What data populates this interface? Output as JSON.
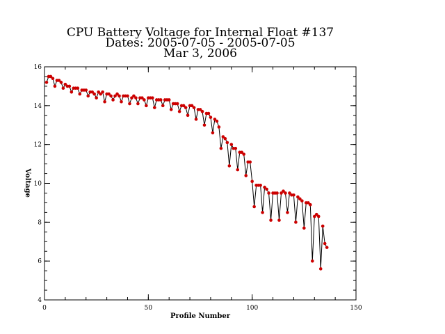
{
  "chart_data": {
    "type": "line",
    "title_lines": [
      "CPU Battery Voltage for Internal Float #137",
      "Dates:  2005-07-05 -  2005-07-05",
      "Mar  3, 2006"
    ],
    "xlabel": "Profile Number",
    "ylabel": "Voltage",
    "xlim": [
      0,
      150
    ],
    "ylim": [
      4,
      16
    ],
    "x_ticks": [
      0,
      50,
      100,
      150
    ],
    "y_ticks": [
      4,
      6,
      8,
      10,
      12,
      14,
      16
    ],
    "x_minor_step": 10,
    "y_minor_step": 0.5,
    "line_color": "#000000",
    "marker_color": "#cc0000",
    "grid": false,
    "legend": "none",
    "series": [
      {
        "x": [
          1,
          2,
          3,
          4,
          5,
          6,
          7,
          8,
          9,
          10,
          11,
          12,
          13,
          14,
          15,
          16,
          17,
          18,
          19,
          20,
          21,
          22,
          23,
          24,
          25,
          26,
          27,
          28,
          29,
          30,
          31,
          32,
          33,
          34,
          35,
          36,
          37,
          38,
          39,
          40,
          41,
          42,
          43,
          44,
          45,
          46,
          47,
          48,
          49,
          50,
          51,
          52,
          53,
          54,
          55,
          56,
          57,
          58,
          59,
          60,
          61,
          62,
          63,
          64,
          65,
          66,
          67,
          68,
          69,
          70,
          71,
          72,
          73,
          74,
          75,
          76,
          77,
          78,
          79,
          80,
          81,
          82,
          83,
          84,
          85,
          86,
          87,
          88,
          89,
          90,
          91,
          92,
          93,
          94,
          95,
          96,
          97,
          98,
          99,
          100,
          101,
          102,
          103,
          104,
          105,
          106,
          107,
          108,
          109,
          110,
          111,
          112,
          113,
          114,
          115,
          116,
          117,
          118,
          119,
          120,
          121,
          122,
          123,
          124,
          125,
          126,
          127,
          128,
          129,
          130,
          131,
          132,
          133,
          134,
          135,
          136
        ],
        "y": [
          15.2,
          15.5,
          15.5,
          15.4,
          15.0,
          15.3,
          15.3,
          15.2,
          14.9,
          15.1,
          15.0,
          15.0,
          14.7,
          14.9,
          14.9,
          14.9,
          14.6,
          14.8,
          14.8,
          14.8,
          14.5,
          14.7,
          14.7,
          14.6,
          14.4,
          14.7,
          14.6,
          14.7,
          14.2,
          14.6,
          14.6,
          14.5,
          14.3,
          14.5,
          14.6,
          14.5,
          14.2,
          14.5,
          14.5,
          14.5,
          14.1,
          14.4,
          14.5,
          14.4,
          14.1,
          14.4,
          14.4,
          14.3,
          14.0,
          14.4,
          14.4,
          14.4,
          13.9,
          14.3,
          14.3,
          14.3,
          14.0,
          14.3,
          14.3,
          14.3,
          13.8,
          14.1,
          14.1,
          14.1,
          13.7,
          14.0,
          14.0,
          13.9,
          13.5,
          14.0,
          14.0,
          13.9,
          13.3,
          13.8,
          13.8,
          13.7,
          13.0,
          13.6,
          13.6,
          13.4,
          12.6,
          13.3,
          13.2,
          12.9,
          11.8,
          12.4,
          12.3,
          12.1,
          10.9,
          12.0,
          11.8,
          11.8,
          10.7,
          11.6,
          11.6,
          11.5,
          10.4,
          11.1,
          11.1,
          10.1,
          8.8,
          9.9,
          9.9,
          9.9,
          8.5,
          9.8,
          9.7,
          9.5,
          8.1,
          9.5,
          9.5,
          9.5,
          8.1,
          9.5,
          9.6,
          9.5,
          8.5,
          9.5,
          9.4,
          9.4,
          8.0,
          9.3,
          9.2,
          9.1,
          7.7,
          9.0,
          9.0,
          8.9,
          6.0,
          8.3,
          8.4,
          8.3,
          5.6,
          7.8,
          6.9,
          6.7
        ]
      }
    ]
  }
}
